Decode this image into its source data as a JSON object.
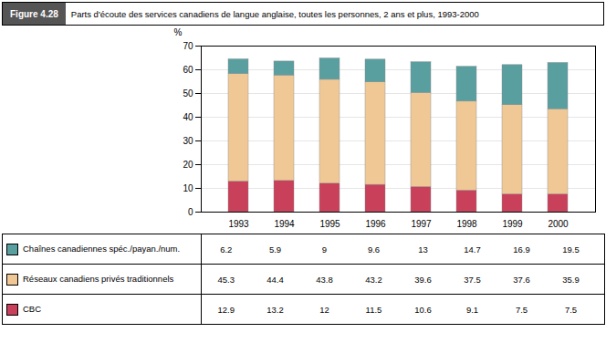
{
  "chart_data": {
    "type": "bar",
    "title": "Figure 4.28",
    "subtitle": "Parts d'écoute des services canadiens de langue anglaise, toutes les personnes, 2 ans et plus, 1993-2000",
    "categories": [
      "1993",
      "1994",
      "1995",
      "1996",
      "1997",
      "1998",
      "1999",
      "2000"
    ],
    "series": [
      {
        "name": "CBC",
        "color": "#c8405a",
        "values": [
          12.9,
          13.2,
          12,
          11.5,
          10.6,
          9.1,
          7.5,
          7.5
        ]
      },
      {
        "name": "Réseaux canadiens privés traditionnels",
        "color": "#f0c896",
        "values": [
          45.3,
          44.4,
          43.8,
          43.2,
          39.6,
          37.5,
          37.6,
          35.9
        ]
      },
      {
        "name": "Chaînes canadiennes spéc./payan./num.",
        "color": "#5a9fa0",
        "values": [
          6.2,
          5.9,
          9,
          9.6,
          13,
          14.7,
          16.9,
          19.5
        ]
      }
    ],
    "ylabel": "%",
    "ylim": [
      0,
      70
    ],
    "yticks": [
      0,
      10,
      20,
      30,
      40,
      50,
      60,
      70
    ],
    "stacked": true,
    "grid": true
  }
}
